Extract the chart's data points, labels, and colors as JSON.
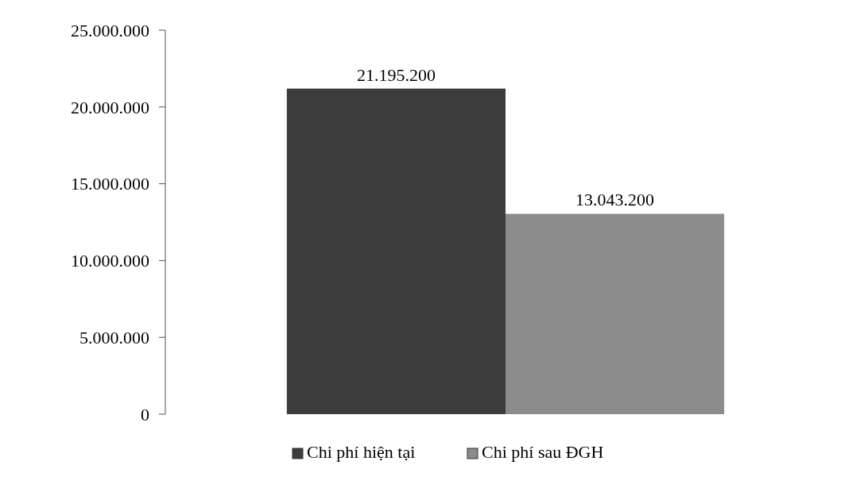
{
  "chart_data": {
    "type": "bar",
    "categories": [
      null
    ],
    "series": [
      {
        "name": "Chi phí hiện tại",
        "color": "#3c3c3c",
        "values": [
          21195200
        ]
      },
      {
        "name": "Chi phí sau ĐGH",
        "color": "#8c8c8c",
        "values": [
          13043200
        ]
      }
    ],
    "ylim": [
      0,
      25000000
    ],
    "yticks": [
      0,
      {
        "value": 5000000,
        "label": "5.000.000"
      },
      {
        "value": 10000000,
        "label": "10.000.000"
      },
      {
        "value": 15000000,
        "label": "15.000.000"
      },
      {
        "value": 20000000,
        "label": "20.000.000"
      },
      {
        "value": 25000000,
        "label": "25.000.000"
      }
    ],
    "value_labels": [
      "21.195.200",
      "13.043.200"
    ],
    "legend": "bottom"
  }
}
